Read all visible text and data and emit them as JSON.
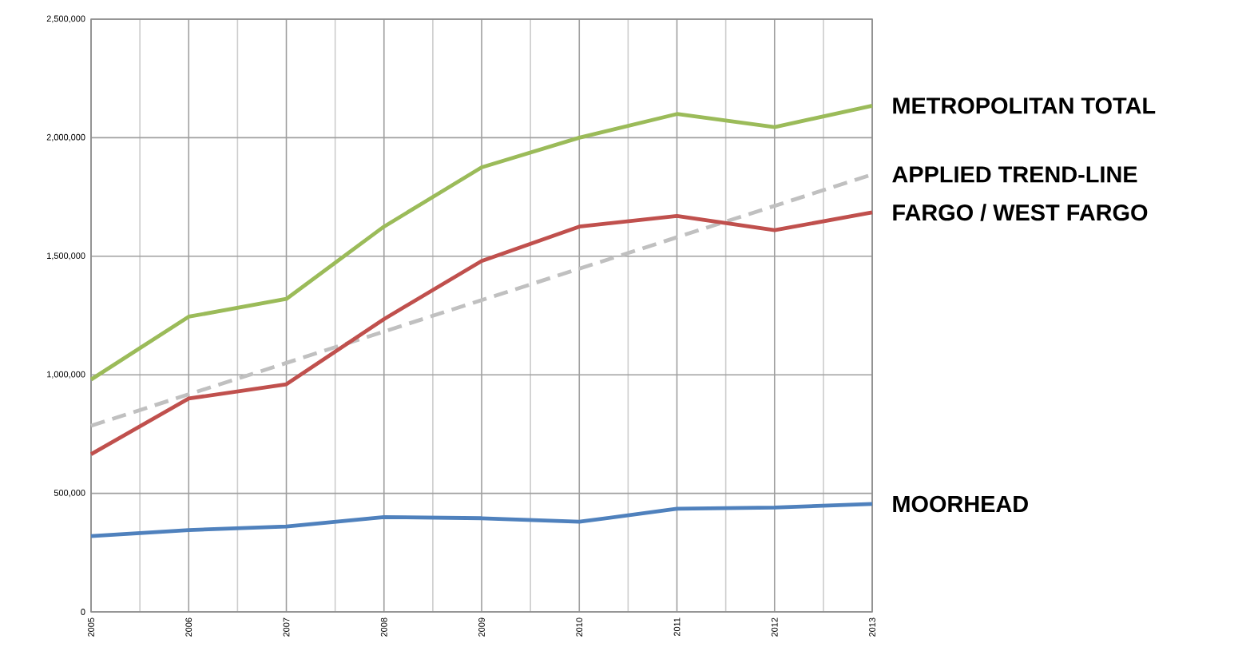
{
  "chart_data": {
    "type": "line",
    "x": [
      2005,
      2006,
      2007,
      2008,
      2009,
      2010,
      2011,
      2012,
      2013
    ],
    "series": [
      {
        "name": "METROPOLITAN TOTAL",
        "color": "#9bbb59",
        "values": [
          980000,
          1245000,
          1320000,
          1625000,
          1875000,
          2000000,
          2100000,
          2045000,
          2135000
        ]
      },
      {
        "name": "APPLIED TREND-LINE",
        "color": "#c0c0c0",
        "line_style": "dashed",
        "x": [
          2005,
          2013
        ],
        "values": [
          785000,
          1845000
        ]
      },
      {
        "name": "FARGO / WEST FARGO",
        "color": "#c0504d",
        "values": [
          665000,
          900000,
          960000,
          1235000,
          1480000,
          1625000,
          1670000,
          1610000,
          1685000
        ]
      },
      {
        "name": "MOORHEAD",
        "color": "#4f81bd",
        "values": [
          320000,
          345000,
          360000,
          400000,
          395000,
          380000,
          435000,
          440000,
          455000
        ]
      }
    ],
    "xlim": [
      2005,
      2013
    ],
    "xticks": [
      2005,
      2006,
      2007,
      2008,
      2009,
      2010,
      2011,
      2012,
      2013
    ],
    "ylim": [
      0,
      2500000
    ],
    "yticks": [
      0,
      {
        "value": 500000,
        "label": "500,000"
      },
      {
        "value": 1000000,
        "label": "1,000,000"
      },
      {
        "value": 1500000,
        "label": "1,500,000"
      },
      {
        "value": 2000000,
        "label": "2,000,000"
      },
      {
        "value": 2500000,
        "label": "2,500,000"
      }
    ],
    "grid": true,
    "marker": "none",
    "line_style": "solid"
  }
}
